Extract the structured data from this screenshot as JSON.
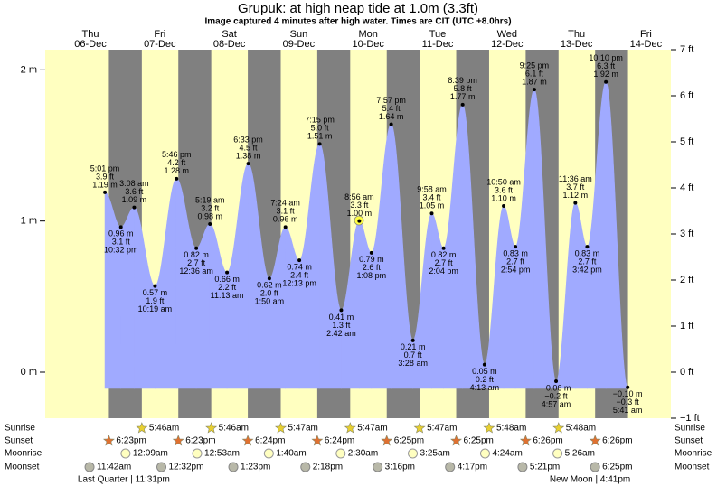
{
  "chart_data": {
    "type": "tide",
    "title": "Grupuk: at high   neap tide at 1.0m (3.3ft)",
    "subtitle": "Image captured 4 minutes after high water. Times are CIT (UTC +8.0hrs)",
    "ylim": [
      -0.3048,
      2.1336
    ],
    "yticks": [
      {
        "value": 0,
        "label": "0 m"
      },
      {
        "value": 1,
        "label": "1 m"
      },
      {
        "value": 2,
        "label": "2 m"
      }
    ],
    "y2lim": [
      -1,
      7
    ],
    "y2ticks": [
      {
        "value": -1,
        "label": "−1 ft"
      },
      {
        "value": 0,
        "label": "0 ft"
      },
      {
        "value": 1,
        "label": "1 ft"
      },
      {
        "value": 2,
        "label": "2 ft"
      },
      {
        "value": 3,
        "label": "3 ft"
      },
      {
        "value": 4,
        "label": "4 ft"
      },
      {
        "value": 5,
        "label": "5 ft"
      },
      {
        "value": 6,
        "label": "6 ft"
      },
      {
        "value": 7,
        "label": "7 ft"
      }
    ],
    "colors": {
      "day": "#ffffc0",
      "night": "#808080",
      "water": "#a0aaff",
      "day_label": "#e00000"
    },
    "rows": {
      "sunrise": "Sunrise",
      "sunset": "Sunset",
      "moonrise": "Moonrise",
      "moonset": "Moonset"
    },
    "days": [
      {
        "name": "Thu",
        "date": "06-Dec",
        "sunset": "6:23pm",
        "moonset": "11:42am",
        "moon_phase": "Last Quarter | 11:31pm",
        "tides": [
          {
            "time": "5:01 pm",
            "ft": 3.9,
            "ft_label": "3.9 ft",
            "m": 1.19,
            "m_label": "1.19 m"
          },
          {
            "time": "10:32 pm",
            "ft": 3.1,
            "ft_label": "3.1 ft",
            "m": 0.96,
            "m_label": "0.96 m"
          }
        ]
      },
      {
        "name": "Fri",
        "date": "07-Dec",
        "sunrise": "5:46am",
        "sunset": "6:23pm",
        "moonrise": "12:09am",
        "moonset": "12:32pm",
        "tides": [
          {
            "time": "3:08 am",
            "ft": 3.6,
            "ft_label": "3.6 ft",
            "m": 1.09,
            "m_label": "1.09 m"
          },
          {
            "time": "10:19 am",
            "ft": 1.9,
            "ft_label": "1.9 ft",
            "m": 0.57,
            "m_label": "0.57 m"
          },
          {
            "time": "5:46 pm",
            "ft": 4.2,
            "ft_label": "4.2 ft",
            "m": 1.28,
            "m_label": "1.28 m"
          }
        ]
      },
      {
        "name": "Sat",
        "date": "08-Dec",
        "sunrise": "5:46am",
        "sunset": "6:24pm",
        "moonrise": "12:53am",
        "moonset": "1:23pm",
        "tides": [
          {
            "time": "12:36 am",
            "ft": 2.7,
            "ft_label": "2.7 ft",
            "m": 0.82,
            "m_label": "0.82 m"
          },
          {
            "time": "5:19 am",
            "ft": 3.2,
            "ft_label": "3.2 ft",
            "m": 0.98,
            "m_label": "0.98 m"
          },
          {
            "time": "11:13 am",
            "ft": 2.2,
            "ft_label": "2.2 ft",
            "m": 0.66,
            "m_label": "0.66 m"
          },
          {
            "time": "6:33 pm",
            "ft": 4.5,
            "ft_label": "4.5 ft",
            "m": 1.38,
            "m_label": "1.38 m"
          }
        ]
      },
      {
        "name": "Sun",
        "date": "09-Dec",
        "sunrise": "5:47am",
        "sunset": "6:24pm",
        "moonrise": "1:40am",
        "moonset": "2:18pm",
        "tides": [
          {
            "time": "1:50 am",
            "ft": 2.0,
            "ft_label": "2.0 ft",
            "m": 0.62,
            "m_label": "0.62 m"
          },
          {
            "time": "7:24 am",
            "ft": 3.1,
            "ft_label": "3.1 ft",
            "m": 0.96,
            "m_label": "0.96 m"
          },
          {
            "time": "12:13 pm",
            "ft": 2.4,
            "ft_label": "2.4 ft",
            "m": 0.74,
            "m_label": "0.74 m"
          },
          {
            "time": "7:15 pm",
            "ft": 5.0,
            "ft_label": "5.0 ft",
            "m": 1.51,
            "m_label": "1.51 m"
          }
        ]
      },
      {
        "name": "Mon",
        "date": "10-Dec",
        "sunrise": "5:47am",
        "sunset": "6:25pm",
        "moonrise": "2:30am",
        "moonset": "3:16pm",
        "tides": [
          {
            "time": "2:42 am",
            "ft": 1.3,
            "ft_label": "1.3 ft",
            "m": 0.41,
            "m_label": "0.41 m"
          },
          {
            "time": "8:56 am",
            "ft": 3.3,
            "ft_label": "3.3 ft",
            "m": 1.0,
            "m_label": "1.00 m"
          },
          {
            "time": "1:08 pm",
            "ft": 2.6,
            "ft_label": "2.6 ft",
            "m": 0.79,
            "m_label": "0.79 m"
          },
          {
            "time": "7:57 pm",
            "ft": 5.4,
            "ft_label": "5.4 ft",
            "m": 1.64,
            "m_label": "1.64 m"
          }
        ]
      },
      {
        "name": "Tue",
        "date": "11-Dec",
        "sunrise": "5:47am",
        "sunset": "6:25pm",
        "moonrise": "3:25am",
        "moonset": "4:17pm",
        "tides": [
          {
            "time": "3:28 am",
            "ft": 0.7,
            "ft_label": "0.7 ft",
            "m": 0.21,
            "m_label": "0.21 m"
          },
          {
            "time": "9:58 am",
            "ft": 3.4,
            "ft_label": "3.4 ft",
            "m": 1.05,
            "m_label": "1.05 m"
          },
          {
            "time": "2:04 pm",
            "ft": 2.7,
            "ft_label": "2.7 ft",
            "m": 0.82,
            "m_label": "0.82 m"
          },
          {
            "time": "8:39 pm",
            "ft": 5.8,
            "ft_label": "5.8 ft",
            "m": 1.77,
            "m_label": "1.77 m"
          }
        ]
      },
      {
        "name": "Wed",
        "date": "12-Dec",
        "sunrise": "5:48am",
        "sunset": "6:26pm",
        "moonrise": "4:24am",
        "moonset": "5:21pm",
        "tides": [
          {
            "time": "4:13 am",
            "ft": 0.2,
            "ft_label": "0.2 ft",
            "m": 0.05,
            "m_label": "0.05 m"
          },
          {
            "time": "10:50 am",
            "ft": 3.6,
            "ft_label": "3.6 ft",
            "m": 1.1,
            "m_label": "1.10 m"
          },
          {
            "time": "2:54 pm",
            "ft": 2.7,
            "ft_label": "2.7 ft",
            "m": 0.83,
            "m_label": "0.83 m"
          },
          {
            "time": "9:25 pm",
            "ft": 6.1,
            "ft_label": "6.1 ft",
            "m": 1.87,
            "m_label": "1.87 m"
          }
        ]
      },
      {
        "name": "Thu",
        "date": "13-Dec",
        "sunrise": "5:48am",
        "sunset": "6:26pm",
        "moonrise": "5:26am",
        "moonset": "6:25pm",
        "moon_phase": "New Moon | 4:41pm",
        "tides": [
          {
            "time": "4:57 am",
            "ft": -0.2,
            "ft_label": "−0.2 ft",
            "m": -0.06,
            "m_label": "−0.06 m"
          },
          {
            "time": "11:36 am",
            "ft": 3.7,
            "ft_label": "3.7 ft",
            "m": 1.12,
            "m_label": "1.12 m"
          },
          {
            "time": "3:42 pm",
            "ft": 2.7,
            "ft_label": "2.7 ft",
            "m": 0.83,
            "m_label": "0.83 m"
          },
          {
            "time": "10:10 pm",
            "ft": 6.3,
            "ft_label": "6.3 ft",
            "m": 1.92,
            "m_label": "1.92 m"
          }
        ]
      },
      {
        "name": "Fri",
        "date": "14-Dec",
        "tides": [
          {
            "time": "5:41 am",
            "ft": -0.3,
            "ft_label": "−0.3 ft",
            "m": -0.1,
            "m_label": "−0.10 m"
          }
        ]
      }
    ]
  }
}
